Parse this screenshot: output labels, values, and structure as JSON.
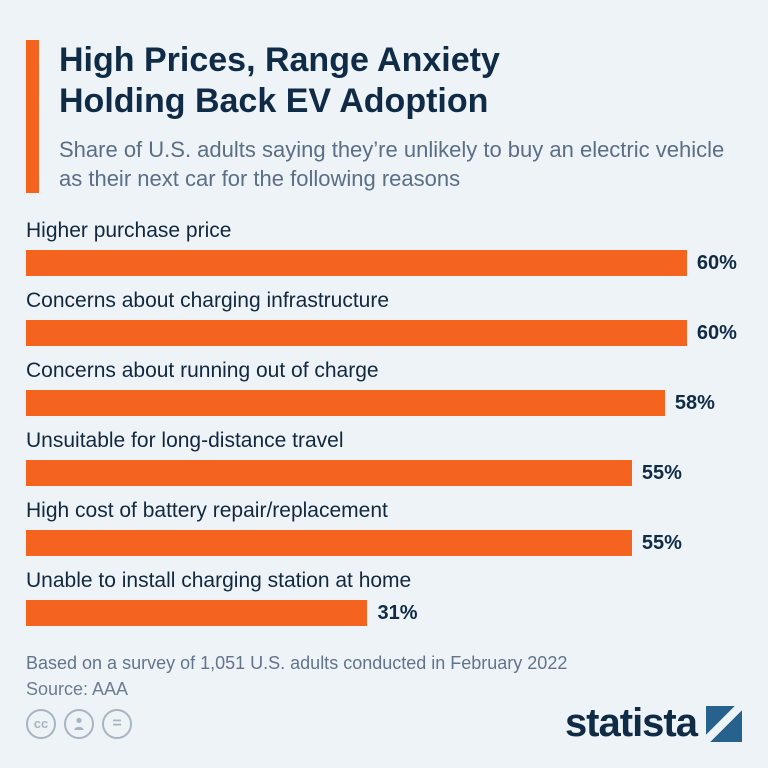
{
  "header": {
    "title_line1": "High Prices, Range Anxiety",
    "title_line2": "Holding Back EV Adoption",
    "subtitle": "Share of U.S. adults saying they’re unlikely to buy an electric vehicle as their next car for the following reasons"
  },
  "chart_data": {
    "type": "bar",
    "orientation": "horizontal",
    "title": "High Prices, Range Anxiety Holding Back EV Adoption",
    "categories": [
      "Higher purchase price",
      "Concerns about charging infrastructure",
      "Concerns about running out of charge",
      "Unsuitable for long-distance travel",
      "High cost of battery repair/replacement",
      "Unable to install charging station at home"
    ],
    "values": [
      60,
      60,
      58,
      55,
      55,
      31
    ],
    "value_suffix": "%",
    "xlim": [
      0,
      65
    ],
    "bar_color": "#f4641e",
    "grid": false,
    "legend": false
  },
  "footer": {
    "note": "Based on a survey of 1,051 U.S. adults conducted in February 2022",
    "source": "Source: AAA"
  },
  "branding": {
    "logo_text": "statista",
    "license_icons": [
      {
        "name": "cc-icon",
        "glyph": "cc"
      },
      {
        "name": "attribution-icon",
        "glyph": "person"
      },
      {
        "name": "equals-icon",
        "glyph": "="
      }
    ]
  },
  "colors": {
    "background": "#eef3f8",
    "accent_orange": "#f4641e",
    "title_navy": "#0f2b46",
    "subtitle_gray": "#5a6e86",
    "footer_gray": "#61748c",
    "logo_blue": "#27618e"
  }
}
